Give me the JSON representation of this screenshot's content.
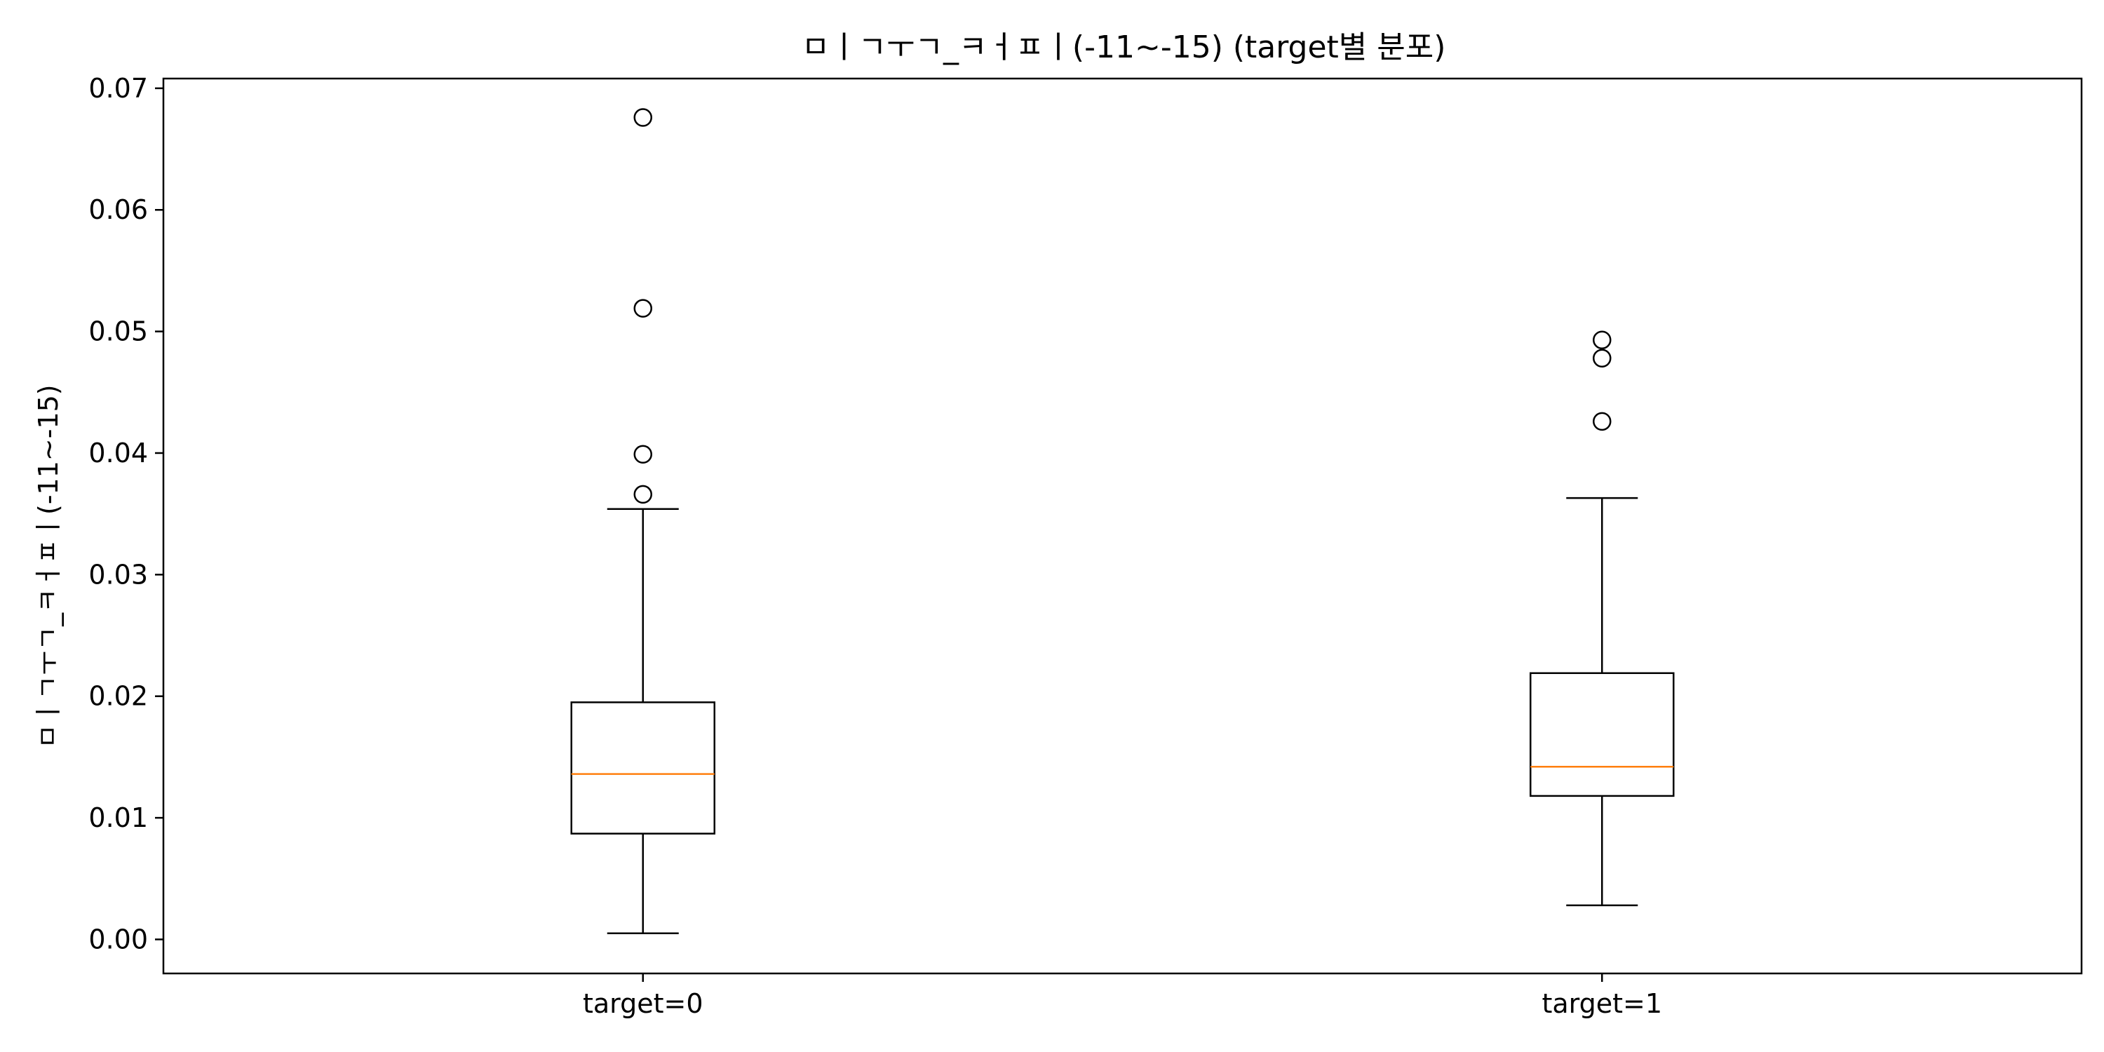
{
  "chart_data": {
    "type": "box",
    "title": "ㅁㅣㄱㅜㄱ_ㅋㅓㅍㅣ(-11~-15) (target별 분포)",
    "xlabel": "",
    "ylabel": "ㅁㅣㄱㅜㄱ_ㅋㅓㅍㅣ(-11~-15)",
    "ylim": [
      -0.0028,
      0.0708
    ],
    "yticks": [
      0.0,
      0.01,
      0.02,
      0.03,
      0.04,
      0.05,
      0.06,
      0.07
    ],
    "ytick_labels": [
      "0.00",
      "0.01",
      "0.02",
      "0.03",
      "0.04",
      "0.05",
      "0.06",
      "0.07"
    ],
    "grid": false,
    "legend": "none",
    "colors": {
      "box": "#000000",
      "median": "#ff7f0e",
      "outlier": "#000000"
    },
    "categories": [
      "target=0",
      "target=1"
    ],
    "boxes": [
      {
        "category": "target=0",
        "whisker_low": 0.0005,
        "q1": 0.0087,
        "median": 0.0136,
        "q3": 0.0195,
        "whisker_high": 0.0354,
        "outliers": [
          0.0366,
          0.0399,
          0.0519,
          0.0676
        ]
      },
      {
        "category": "target=1",
        "whisker_low": 0.0028,
        "q1": 0.0118,
        "median": 0.0142,
        "q3": 0.0219,
        "whisker_high": 0.0363,
        "outliers": [
          0.0426,
          0.0478,
          0.0493
        ]
      }
    ]
  }
}
